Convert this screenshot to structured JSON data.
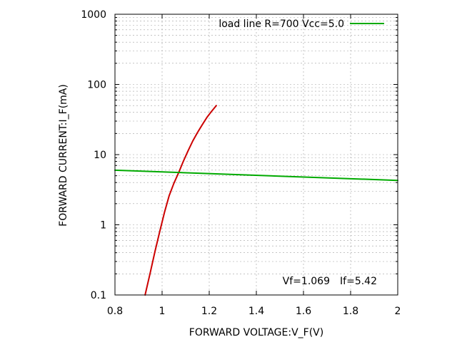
{
  "chart_data": {
    "type": "line",
    "title": "",
    "xlabel": "FORWARD VOLTAGE:V_F(V)",
    "ylabel": "FORWARD CURRENT:I_F(mA)",
    "xlim": [
      0.8,
      2.0
    ],
    "ylim": [
      0.1,
      1000
    ],
    "yscale": "log",
    "grid": true,
    "legend_position": "top-right",
    "x_ticks": [
      {
        "value": 0.8,
        "label": "0.8"
      },
      {
        "value": 1.0,
        "label": "1"
      },
      {
        "value": 1.2,
        "label": "1.2"
      },
      {
        "value": 1.4,
        "label": "1.4"
      },
      {
        "value": 1.6,
        "label": "1.6"
      },
      {
        "value": 1.8,
        "label": "1.8"
      },
      {
        "value": 2.0,
        "label": "2"
      }
    ],
    "y_ticks": [
      {
        "value": 0.1,
        "label": "0.1"
      },
      {
        "value": 1,
        "label": "1"
      },
      {
        "value": 10,
        "label": "10"
      },
      {
        "value": 100,
        "label": "100"
      },
      {
        "value": 1000,
        "label": "1000"
      }
    ],
    "series": [
      {
        "name": "",
        "color": "#cc0000",
        "x": [
          0.928,
          0.95,
          0.97,
          0.99,
          1.01,
          1.03,
          1.05,
          1.069,
          1.09,
          1.11,
          1.13,
          1.15,
          1.17,
          1.19,
          1.21,
          1.23
        ],
        "y": [
          0.1,
          0.21,
          0.42,
          0.8,
          1.5,
          2.6,
          3.9,
          5.42,
          8.0,
          11.3,
          15.6,
          20.6,
          26.5,
          33.8,
          41.4,
          50.0
        ]
      },
      {
        "name": "load line R=700 Vcc=5.0",
        "color": "#00aa00",
        "x": [
          0.8,
          2.0
        ],
        "y": [
          6.0,
          4.29
        ]
      }
    ],
    "annotation": {
      "vf": "Vf=1.069",
      "if": "If=5.42"
    }
  }
}
